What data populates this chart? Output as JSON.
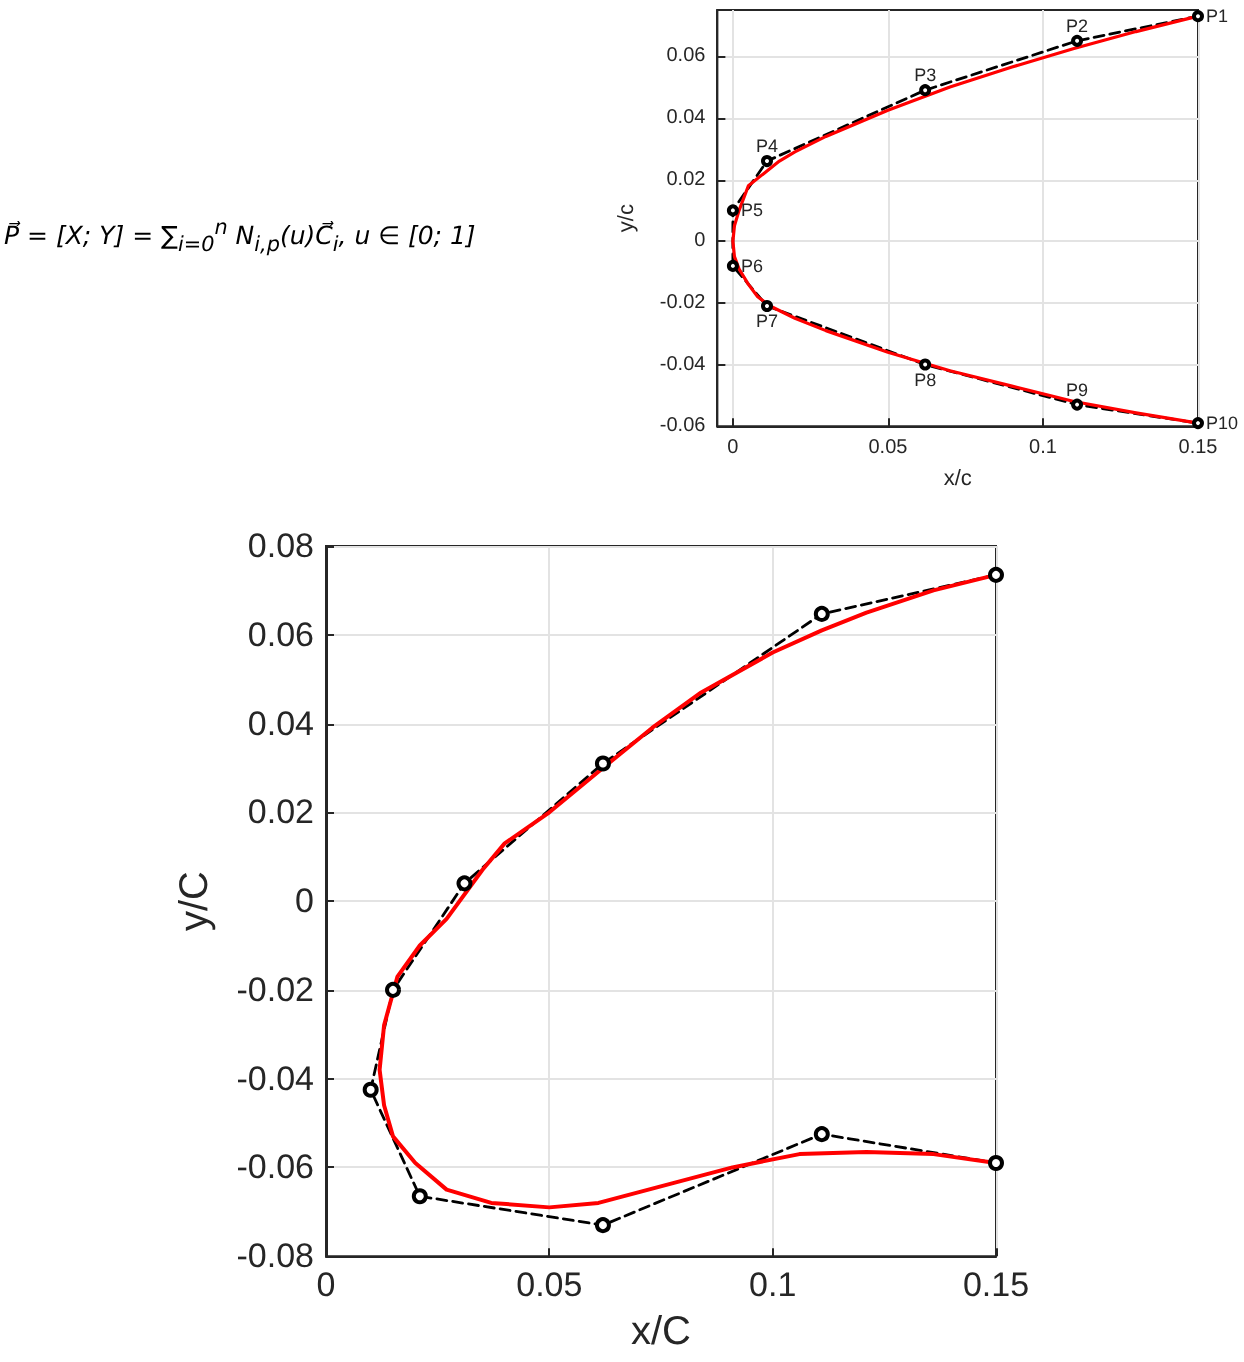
{
  "chart_data": [
    {
      "type": "other",
      "annotations": [
        "P⃗ = [X; Y] = ∑$_{i=0}$$^{n}$ N$_{i,p}$(u)C⃗$_{i}$, u ∈ [0; 1]"
      ]
    },
    {
      "type": "line",
      "xlabel": "x/c",
      "ylabel": "y/c",
      "xlim": [
        -0.005,
        0.15
      ],
      "ylim": [
        -0.06,
        0.075
      ],
      "xticks": [
        0,
        0.05,
        0.1,
        0.15
      ],
      "yticks": [
        -0.06,
        -0.04,
        -0.02,
        0,
        0.02,
        0.04,
        0.06
      ],
      "grid": true,
      "series": [
        {
          "color": "#000000",
          "marker": "circle",
          "line_style": "dashed",
          "x": [
            0.15,
            0.111,
            0.062,
            0.011,
            0,
            0,
            0.011,
            0.062,
            0.111,
            0.15
          ],
          "values": [
            0.073,
            0.065,
            0.049,
            0.026,
            0.01,
            -0.008,
            -0.021,
            -0.04,
            -0.053,
            -0.059
          ]
        },
        {
          "color": "#ff0000",
          "marker": "none",
          "line_style": "solid",
          "x": [
            0.15,
            0.13,
            0.11,
            0.09,
            0.07,
            0.05,
            0.03,
            0.02,
            0.015,
            0.01,
            0.005,
            0.002,
            0.0005,
            0,
            0.0005,
            0.002,
            0.005,
            0.008,
            0.012,
            0.02,
            0.03,
            0.05,
            0.07,
            0.09,
            0.11,
            0.13,
            0.15
          ],
          "values": [
            0.073,
            0.068,
            0.0625,
            0.0565,
            0.05,
            0.0425,
            0.034,
            0.029,
            0.026,
            0.022,
            0.018,
            0.01,
            0.005,
            0,
            -0.005,
            -0.009,
            -0.014,
            -0.018,
            -0.021,
            -0.025,
            -0.029,
            -0.036,
            -0.042,
            -0.047,
            -0.052,
            -0.0557,
            -0.059
          ]
        }
      ],
      "annotations": [
        {
          "text": "P1",
          "x": 0.15,
          "y": 0.073
        },
        {
          "text": "P2",
          "x": 0.111,
          "y": 0.065
        },
        {
          "text": "P3",
          "x": 0.062,
          "y": 0.049
        },
        {
          "text": "P4",
          "x": 0.011,
          "y": 0.026
        },
        {
          "text": "P5",
          "x": 0,
          "y": 0.01
        },
        {
          "text": "P6",
          "x": 0,
          "y": -0.008
        },
        {
          "text": "P7",
          "x": 0.011,
          "y": -0.021
        },
        {
          "text": "P8",
          "x": 0.062,
          "y": -0.04
        },
        {
          "text": "P9",
          "x": 0.111,
          "y": -0.053
        },
        {
          "text": "P10",
          "x": 0.15,
          "y": -0.059
        }
      ]
    },
    {
      "type": "line",
      "xlabel": "x/C",
      "ylabel": "y/C",
      "xlim": [
        0,
        0.15
      ],
      "ylim": [
        -0.08,
        0.08
      ],
      "xticks": [
        0,
        0.05,
        0.1,
        0.15
      ],
      "yticks": [
        -0.08,
        -0.06,
        -0.04,
        -0.02,
        0,
        0.02,
        0.04,
        0.06,
        0.08
      ],
      "grid": true,
      "series": [
        {
          "color": "#000000",
          "marker": "circle",
          "line_style": "dashed",
          "x": [
            0.15,
            0.111,
            0.062,
            0.031,
            0.015,
            0.01,
            0.021,
            0.062,
            0.111,
            0.15
          ],
          "values": [
            0.0735,
            0.0647,
            0.031,
            0.004,
            -0.02,
            -0.0425,
            -0.0665,
            -0.073,
            -0.0525,
            -0.059
          ]
        },
        {
          "color": "#ff0000",
          "marker": "none",
          "line_style": "solid",
          "x": [
            0.15,
            0.136,
            0.121,
            0.111,
            0.1,
            0.084,
            0.073,
            0.062,
            0.05,
            0.04,
            0.035,
            0.027,
            0.021,
            0.016,
            0.013,
            0.012,
            0.013,
            0.015,
            0.02,
            0.027,
            0.037,
            0.05,
            0.061,
            0.076,
            0.091,
            0.106,
            0.121,
            0.136,
            0.15
          ],
          "values": [
            0.0735,
            0.07,
            0.065,
            0.061,
            0.056,
            0.047,
            0.039,
            0.03,
            0.02,
            0.013,
            0.007,
            -0.004,
            -0.01,
            -0.017,
            -0.028,
            -0.038,
            -0.046,
            -0.053,
            -0.059,
            -0.065,
            -0.068,
            -0.069,
            -0.068,
            -0.064,
            -0.06,
            -0.057,
            -0.0565,
            -0.057,
            -0.059
          ]
        }
      ]
    }
  ]
}
